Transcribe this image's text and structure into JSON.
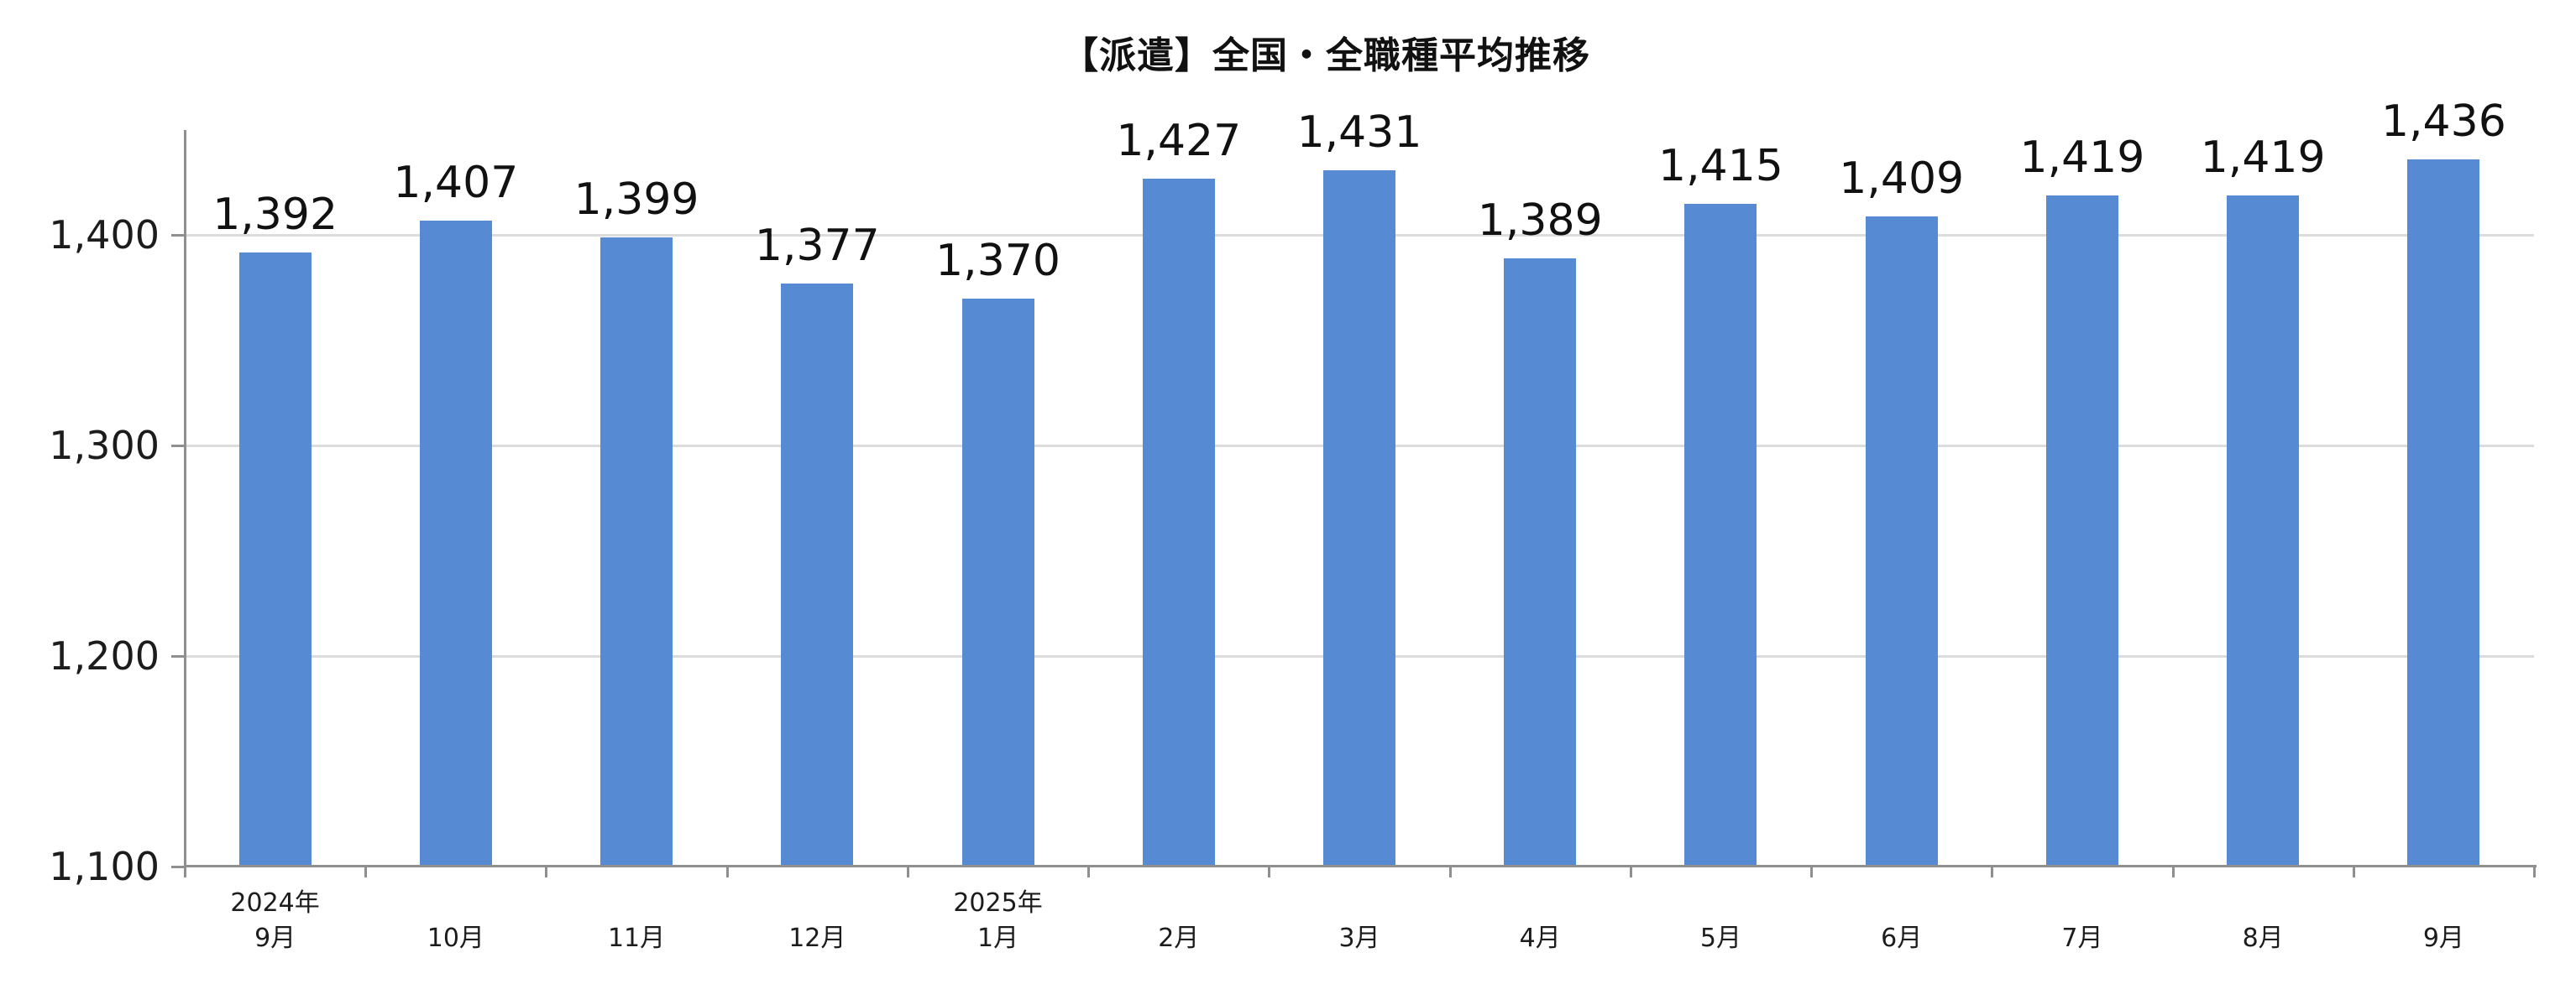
{
  "chart_data": {
    "type": "bar",
    "title": "【派遣】全国・全職種平均推移",
    "categories": [
      {
        "year": "2024年",
        "month": "9月"
      },
      {
        "year": "",
        "month": "10月"
      },
      {
        "year": "",
        "month": "11月"
      },
      {
        "year": "",
        "month": "12月"
      },
      {
        "year": "2025年",
        "month": "1月"
      },
      {
        "year": "",
        "month": "2月"
      },
      {
        "year": "",
        "month": "3月"
      },
      {
        "year": "",
        "month": "4月"
      },
      {
        "year": "",
        "month": "5月"
      },
      {
        "year": "",
        "month": "6月"
      },
      {
        "year": "",
        "month": "7月"
      },
      {
        "year": "",
        "month": "8月"
      },
      {
        "year": "",
        "month": "9月"
      }
    ],
    "values": [
      1392,
      1407,
      1399,
      1377,
      1370,
      1427,
      1431,
      1389,
      1415,
      1409,
      1419,
      1419,
      1436
    ],
    "value_labels": [
      "1,392",
      "1,407",
      "1,399",
      "1,377",
      "1,370",
      "1,427",
      "1,431",
      "1,389",
      "1,415",
      "1,409",
      "1,419",
      "1,419",
      "1,436"
    ],
    "xlabel": "",
    "ylabel": "",
    "ylim": [
      1100,
      1450
    ],
    "yticks": [
      {
        "value": 1100,
        "label": "1,100"
      },
      {
        "value": 1200,
        "label": "1,200"
      },
      {
        "value": 1300,
        "label": "1,300"
      },
      {
        "value": 1400,
        "label": "1,400"
      }
    ],
    "grid": true,
    "legend_position": "none",
    "colors": {
      "bar": "#568BD4",
      "axis_line": "#8F8F8F",
      "gridline": "#DCDCDC",
      "title_text": "#111111",
      "data_label_text": "#111111",
      "axis_label_text": "#1c1c1c"
    }
  }
}
